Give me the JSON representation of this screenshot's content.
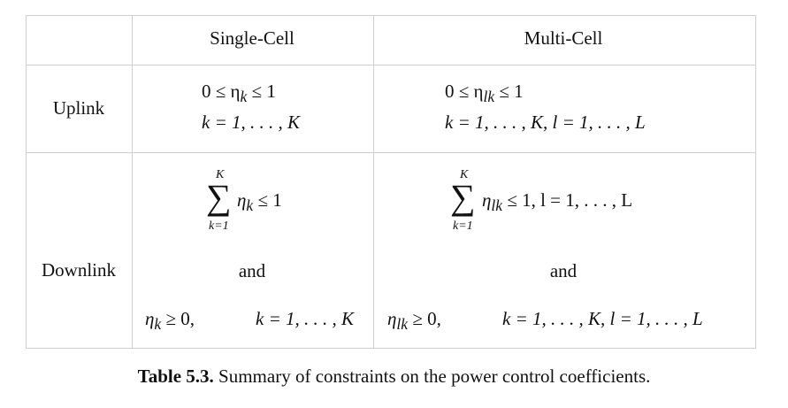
{
  "table": {
    "headers": {
      "single_cell": "Single-Cell",
      "multi_cell": "Multi-Cell"
    },
    "rows": {
      "uplink": "Uplink",
      "downlink": "Downlink"
    },
    "uplink": {
      "single_line1": "0 ≤ η",
      "single_line1_sub": "k",
      "single_line1_tail": " ≤ 1",
      "single_line2": "k = 1, . . . , K",
      "multi_line1": "0 ≤ η",
      "multi_line1_sub": "lk",
      "multi_line1_tail": " ≤ 1",
      "multi_line2": "k = 1, . . . , K,    l = 1, . . . , L"
    },
    "downlink": {
      "sum_symbol": "∑",
      "sum_upper": "K",
      "sum_lower": "k=1",
      "single_sum_term": "η",
      "single_sum_sub": "k",
      "single_sum_tail": " ≤ 1",
      "multi_sum_term": "η",
      "multi_sum_sub": "lk",
      "multi_sum_tail": " ≤ 1,    l = 1, . . . , L",
      "and_single": "and",
      "and_multi": "and",
      "single_nonneg_lhs": "η",
      "single_nonneg_sub": "k",
      "single_nonneg_tail": " ≥ 0,",
      "single_nonneg_range": "k = 1, . . . , K",
      "multi_nonneg_lhs": "η",
      "multi_nonneg_sub": "lk",
      "multi_nonneg_tail": " ≥ 0,",
      "multi_nonneg_range": "k = 1, . . . , K,    l = 1, . . . , L"
    }
  },
  "caption": {
    "label": "Table 5.3.",
    "text": " Summary of constraints on the power control coefficients."
  }
}
